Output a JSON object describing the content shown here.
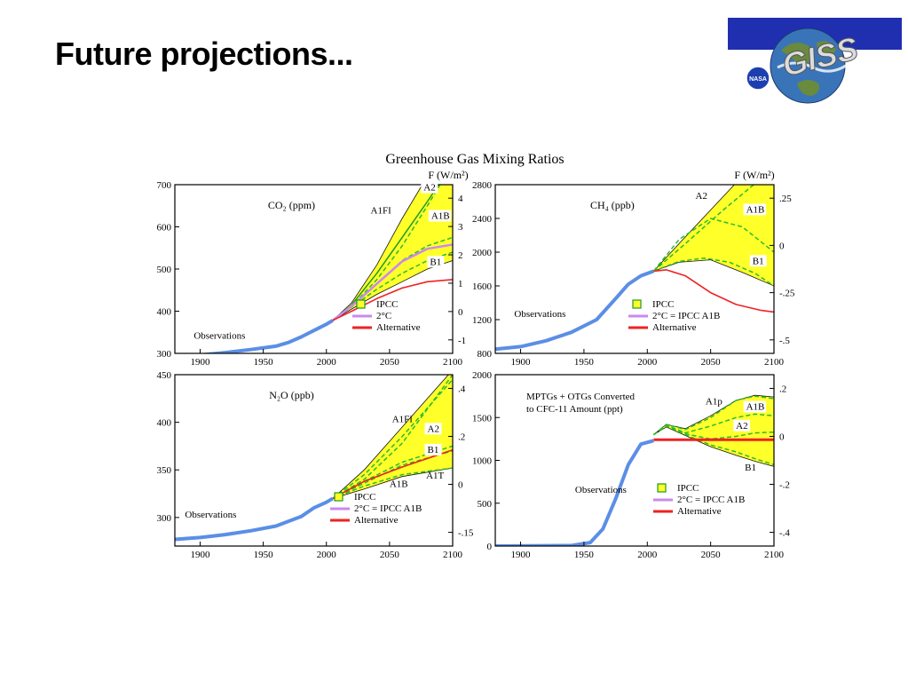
{
  "slide": {
    "title": "Future projections..."
  },
  "logo": {
    "wordmark": "GISS",
    "badge": "NASA"
  },
  "figure": {
    "title": "Greenhouse Gas Mixing Ratios",
    "forcing_axis_label": "F (W/m²)"
  },
  "colors": {
    "ipcc_fill": "#ffff2a",
    "observations": "#5b8ee6",
    "two_degree": "#cc88ee",
    "alternative": "#ee2222",
    "scenario_dashed": "#2bbb2b",
    "a1fi_solid": "#1e9a1e"
  },
  "chart_data": [
    {
      "type": "line",
      "title": "CO₂ (ppm)",
      "xlim": [
        1880,
        2100
      ],
      "ylim": [
        300,
        700
      ],
      "xticks": [
        "1900",
        "1950",
        "2000",
        "2050",
        "2100"
      ],
      "yticks": [
        "300",
        "400",
        "500",
        "600",
        "700"
      ],
      "right_ticks": [
        "-1",
        "0",
        "1",
        "2",
        "3",
        "4"
      ],
      "series": [
        {
          "name": "Observations",
          "kind": "observations",
          "x": [
            1880,
            1900,
            1920,
            1940,
            1960,
            1970,
            1980,
            1990,
            2000,
            2005
          ],
          "y": [
            291,
            296,
            302,
            309,
            317,
            326,
            339,
            354,
            369,
            378
          ]
        },
        {
          "name": "A1FI",
          "kind": "scenario",
          "x": [
            2005,
            2020,
            2040,
            2060,
            2080,
            2100
          ],
          "y": [
            378,
            415,
            490,
            575,
            660,
            750
          ]
        },
        {
          "name": "A2",
          "kind": "scenario",
          "x": [
            2005,
            2020,
            2040,
            2060,
            2080,
            2100
          ],
          "y": [
            378,
            412,
            475,
            555,
            650,
            750
          ]
        },
        {
          "name": "A1B",
          "kind": "scenario",
          "x": [
            2005,
            2020,
            2040,
            2060,
            2080,
            2100
          ],
          "y": [
            378,
            412,
            465,
            520,
            555,
            575
          ]
        },
        {
          "name": "B1",
          "kind": "scenario",
          "x": [
            2005,
            2020,
            2040,
            2060,
            2080,
            2100
          ],
          "y": [
            378,
            410,
            452,
            490,
            520,
            540
          ]
        },
        {
          "name": "2°C",
          "kind": "two_degree",
          "x": [
            2005,
            2020,
            2040,
            2060,
            2080,
            2100
          ],
          "y": [
            378,
            412,
            465,
            518,
            548,
            558
          ]
        },
        {
          "name": "Alternative",
          "kind": "alternative",
          "x": [
            2005,
            2020,
            2040,
            2060,
            2080,
            2100
          ],
          "y": [
            378,
            400,
            430,
            455,
            470,
            475
          ]
        }
      ],
      "band": {
        "x": [
          2005,
          2020,
          2040,
          2060,
          2080,
          2100
        ],
        "low": [
          378,
          405,
          440,
          470,
          500,
          520
        ],
        "high": [
          378,
          420,
          510,
          620,
          720,
          800
        ]
      },
      "labels": [
        {
          "text": "A1FI",
          "x": 2035,
          "y": 632
        },
        {
          "text": "A2",
          "x": 2077,
          "y": 686,
          "boxed": true
        },
        {
          "text": "A1B",
          "x": 2083,
          "y": 619,
          "boxed": true
        },
        {
          "text": "B1",
          "x": 2082,
          "y": 510,
          "boxed": true
        },
        {
          "text": "Observations",
          "x": 1895,
          "y": 335
        }
      ],
      "legend": [
        {
          "label": "IPCC",
          "kind": "ipcc"
        },
        {
          "label": "2°C",
          "kind": "two_degree"
        },
        {
          "label": "Alternative",
          "kind": "alternative"
        }
      ]
    },
    {
      "type": "line",
      "title": "CH₄ (ppb)",
      "xlim": [
        1880,
        2100
      ],
      "ylim": [
        800,
        2800
      ],
      "xticks": [
        "1900",
        "1950",
        "2000",
        "2050",
        "2100"
      ],
      "yticks": [
        "800",
        "1200",
        "1600",
        "2000",
        "2400",
        "2800"
      ],
      "right_ticks": [
        "-.5",
        "-.25",
        "0",
        ".25"
      ],
      "series": [
        {
          "name": "Observations",
          "kind": "observations",
          "x": [
            1880,
            1900,
            1920,
            1940,
            1960,
            1975,
            1985,
            1995,
            2005
          ],
          "y": [
            850,
            880,
            950,
            1050,
            1200,
            1450,
            1620,
            1720,
            1775
          ]
        },
        {
          "name": "A2",
          "kind": "scenario",
          "x": [
            2005,
            2030,
            2060,
            2100
          ],
          "y": [
            1775,
            2100,
            2500,
            3000
          ]
        },
        {
          "name": "A1B",
          "kind": "scenario",
          "x": [
            2005,
            2025,
            2050,
            2075,
            2100
          ],
          "y": [
            1775,
            2150,
            2400,
            2300,
            2000
          ]
        },
        {
          "name": "B1",
          "kind": "scenario",
          "x": [
            2005,
            2025,
            2045,
            2065,
            2085,
            2100
          ],
          "y": [
            1775,
            1890,
            1930,
            1880,
            1750,
            1600
          ]
        },
        {
          "name": "Alternative",
          "kind": "alternative",
          "x": [
            2005,
            2015,
            2030,
            2050,
            2070,
            2090,
            2100
          ],
          "y": [
            1775,
            1790,
            1720,
            1520,
            1380,
            1310,
            1290
          ]
        }
      ],
      "band": {
        "x": [
          2005,
          2025,
          2050,
          2075,
          2100
        ],
        "low": [
          1775,
          1880,
          1910,
          1760,
          1600
        ],
        "high": [
          1775,
          2100,
          2500,
          2900,
          3200
        ]
      },
      "labels": [
        {
          "text": "A2",
          "x": 2038,
          "y": 2630
        },
        {
          "text": "A1B",
          "x": 2078,
          "y": 2470,
          "boxed": true
        },
        {
          "text": "B1",
          "x": 2083,
          "y": 1860,
          "boxed": true
        },
        {
          "text": "Observations",
          "x": 1895,
          "y": 1230
        }
      ],
      "legend": [
        {
          "label": "IPCC",
          "kind": "ipcc"
        },
        {
          "label": "2°C = IPCC A1B",
          "kind": "two_degree"
        },
        {
          "label": "Alternative",
          "kind": "alternative"
        }
      ]
    },
    {
      "type": "line",
      "title": "N₂O (ppb)",
      "xlim": [
        1880,
        2100
      ],
      "ylim": [
        270,
        450
      ],
      "xticks": [
        "1900",
        "1950",
        "2000",
        "2050",
        "2100"
      ],
      "yticks": [
        "300",
        "350",
        "400",
        "450"
      ],
      "right_ticks": [
        "-.15",
        "0",
        ".2",
        ".4"
      ],
      "series": [
        {
          "name": "Observations",
          "kind": "observations",
          "x": [
            1880,
            1900,
            1920,
            1940,
            1960,
            1980,
            1990,
            2000,
            2005
          ],
          "y": [
            277,
            279,
            282,
            286,
            291,
            301,
            310,
            316,
            320
          ]
        },
        {
          "name": "A1FI",
          "kind": "scenario",
          "x": [
            2005,
            2030,
            2060,
            2100
          ],
          "y": [
            320,
            345,
            385,
            445
          ]
        },
        {
          "name": "A2",
          "kind": "scenario",
          "x": [
            2005,
            2030,
            2060,
            2100
          ],
          "y": [
            320,
            340,
            378,
            450
          ]
        },
        {
          "name": "B1",
          "kind": "scenario",
          "x": [
            2005,
            2030,
            2060,
            2100
          ],
          "y": [
            320,
            338,
            358,
            375
          ]
        },
        {
          "name": "A1B",
          "kind": "scenario",
          "x": [
            2005,
            2030,
            2060,
            2100
          ],
          "y": [
            320,
            336,
            355,
            370
          ]
        },
        {
          "name": "A1T",
          "kind": "scenario",
          "x": [
            2005,
            2030,
            2060,
            2100
          ],
          "y": [
            320,
            333,
            345,
            352
          ]
        },
        {
          "name": "Alternative",
          "kind": "alternative",
          "x": [
            2005,
            2030,
            2060,
            2100
          ],
          "y": [
            320,
            338,
            353,
            371
          ]
        }
      ],
      "band": {
        "x": [
          2005,
          2030,
          2060,
          2100
        ],
        "low": [
          320,
          330,
          343,
          352
        ],
        "high": [
          320,
          350,
          395,
          455
        ]
      },
      "labels": [
        {
          "text": "A1FI",
          "x": 2052,
          "y": 400
        },
        {
          "text": "A2",
          "x": 2080,
          "y": 390,
          "boxed": true
        },
        {
          "text": "B1",
          "x": 2080,
          "y": 368,
          "boxed": true
        },
        {
          "text": "A1B",
          "x": 2050,
          "y": 332
        },
        {
          "text": "A1T",
          "x": 2079,
          "y": 341
        },
        {
          "text": "Observations",
          "x": 1888,
          "y": 300
        }
      ],
      "legend": [
        {
          "label": "IPCC",
          "kind": "ipcc"
        },
        {
          "label": "2°C = IPCC A1B",
          "kind": "two_degree"
        },
        {
          "label": "Alternative",
          "kind": "alternative"
        }
      ]
    },
    {
      "type": "line",
      "title": "MPTGs + OTGs Converted",
      "title2": "to CFC-11 Amount (ppt)",
      "xlim": [
        1880,
        2100
      ],
      "ylim": [
        0,
        2000
      ],
      "xticks": [
        "1900",
        "1950",
        "2000",
        "2050",
        "2100"
      ],
      "yticks": [
        "0",
        "500",
        "1000",
        "1500",
        "2000"
      ],
      "right_ticks": [
        "-.4",
        "-.2",
        "0",
        ".2"
      ],
      "series": [
        {
          "name": "Observations",
          "kind": "observations",
          "x": [
            1880,
            1940,
            1955,
            1965,
            1975,
            1985,
            1995,
            2005
          ],
          "y": [
            0,
            5,
            40,
            200,
            550,
            950,
            1190,
            1230
          ]
        },
        {
          "name": "A1p",
          "kind": "scenario",
          "x": [
            2005,
            2015,
            2030,
            2050,
            2070,
            2085,
            2100
          ],
          "y": [
            1300,
            1420,
            1360,
            1500,
            1700,
            1750,
            1720
          ]
        },
        {
          "name": "A1B",
          "kind": "scenario",
          "x": [
            2005,
            2015,
            2030,
            2050,
            2070,
            2085,
            2100
          ],
          "y": [
            1300,
            1410,
            1320,
            1400,
            1500,
            1540,
            1520
          ]
        },
        {
          "name": "A2",
          "kind": "scenario",
          "x": [
            2005,
            2015,
            2030,
            2050,
            2070,
            2085,
            2100
          ],
          "y": [
            1300,
            1400,
            1310,
            1250,
            1280,
            1320,
            1330
          ]
        },
        {
          "name": "B1",
          "kind": "scenario",
          "x": [
            2005,
            2015,
            2030,
            2050,
            2070,
            2085,
            2100
          ],
          "y": [
            1300,
            1400,
            1300,
            1180,
            1100,
            1020,
            950
          ]
        },
        {
          "name": "Alternative",
          "kind": "alternative",
          "x": [
            2005,
            2100
          ],
          "y": [
            1240,
            1240
          ]
        }
      ],
      "band": {
        "x": [
          2005,
          2015,
          2030,
          2050,
          2070,
          2085,
          2100
        ],
        "low": [
          1300,
          1390,
          1290,
          1160,
          1060,
          990,
          930
        ],
        "high": [
          1300,
          1420,
          1370,
          1520,
          1700,
          1760,
          1740
        ]
      },
      "labels": [
        {
          "text": "A1p",
          "x": 2046,
          "y": 1655
        },
        {
          "text": "A1B",
          "x": 2078,
          "y": 1590,
          "boxed": true
        },
        {
          "text": "A2",
          "x": 2070,
          "y": 1370,
          "boxed": true
        },
        {
          "text": "B1",
          "x": 2077,
          "y": 880
        },
        {
          "text": "Observations",
          "x": 1943,
          "y": 620
        }
      ],
      "legend": [
        {
          "label": "IPCC",
          "kind": "ipcc"
        },
        {
          "label": "2°C = IPCC A1B",
          "kind": "two_degree"
        },
        {
          "label": "Alternative",
          "kind": "alternative"
        }
      ]
    }
  ]
}
